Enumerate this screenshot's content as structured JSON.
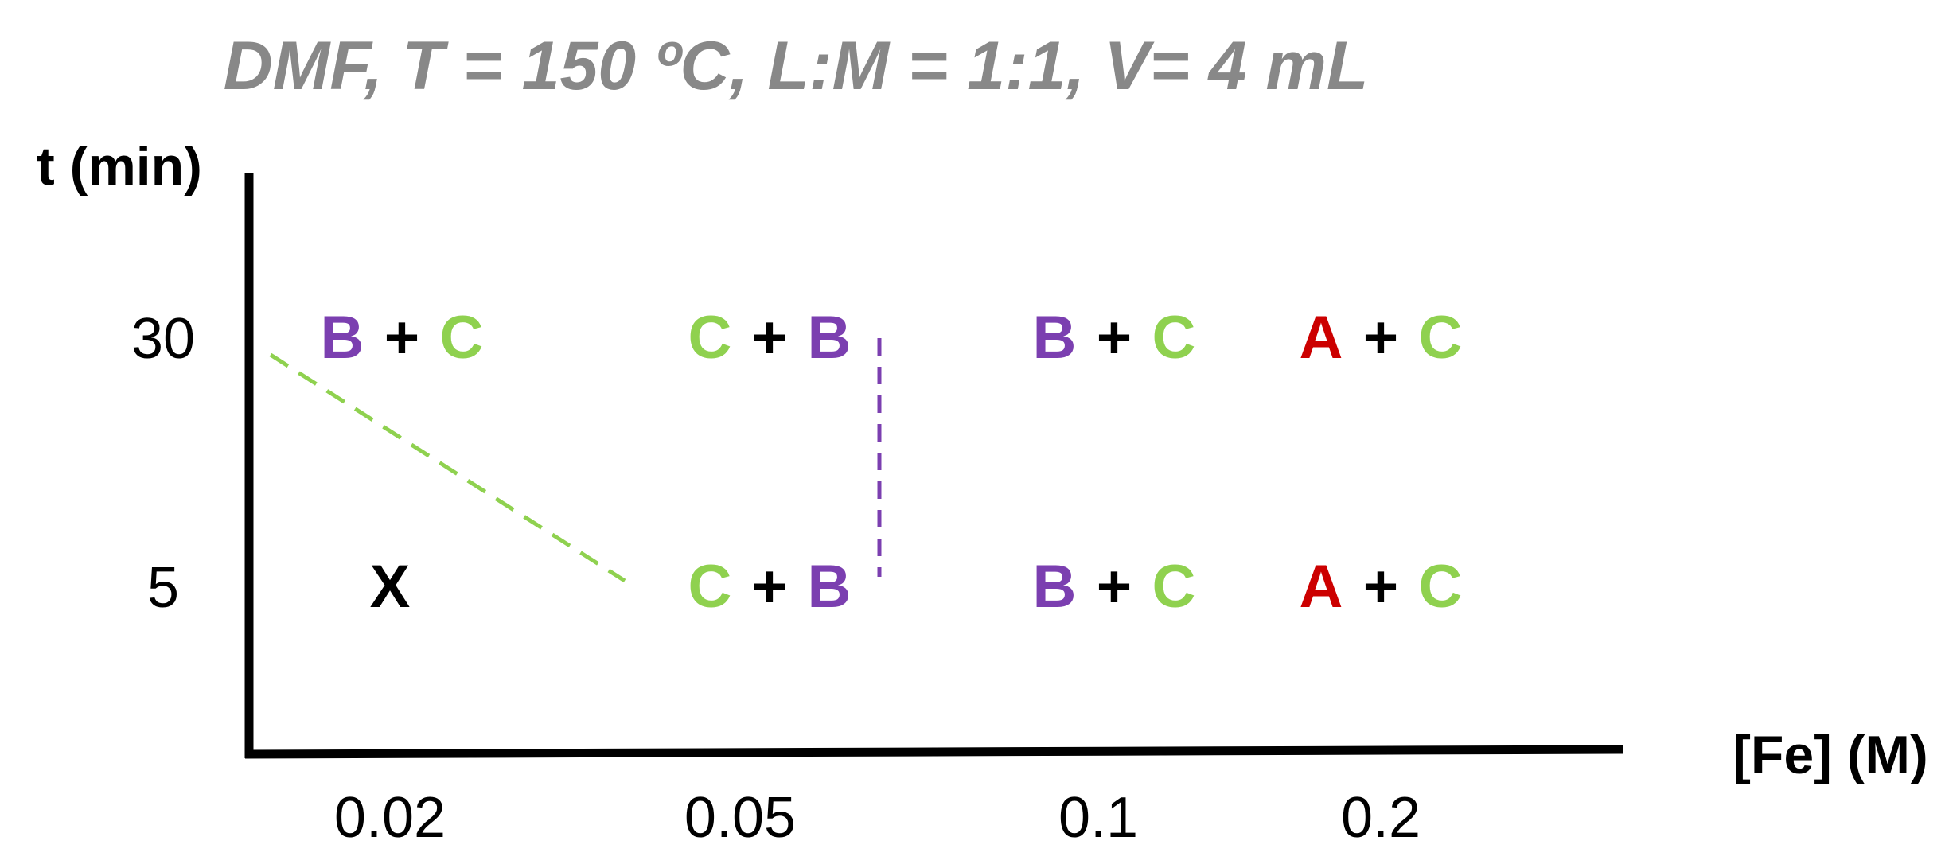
{
  "title": "DMF, T = 150 ºC, L:M = 1:1, V= 4 mL",
  "y_axis_label": "t (min)",
  "x_axis_label": "[Fe] (M)",
  "y_ticks": [
    "30",
    "5"
  ],
  "x_ticks": [
    "0.02",
    "0.05",
    "0.1",
    "0.2"
  ],
  "plus": "+",
  "colors": {
    "title": "#888888",
    "text": "#000000",
    "A": "#cc0000",
    "B": "#7b3fb0",
    "C": "#8fd14f",
    "X": "#000000",
    "green_line": "#8fd14f",
    "purple_line": "#7b3fb0"
  },
  "cells": [
    {
      "t": "30",
      "fe": "0.02",
      "first": "B",
      "second": "C"
    },
    {
      "t": "30",
      "fe": "0.05",
      "first": "C",
      "second": "B"
    },
    {
      "t": "30",
      "fe": "0.1",
      "first": "B",
      "second": "C"
    },
    {
      "t": "30",
      "fe": "0.2",
      "first": "A",
      "second": "C"
    },
    {
      "t": "5",
      "fe": "0.02",
      "single": "X"
    },
    {
      "t": "5",
      "fe": "0.05",
      "first": "C",
      "second": "B"
    },
    {
      "t": "5",
      "fe": "0.1",
      "first": "B",
      "second": "C"
    },
    {
      "t": "5",
      "fe": "0.2",
      "first": "A",
      "second": "C"
    }
  ]
}
